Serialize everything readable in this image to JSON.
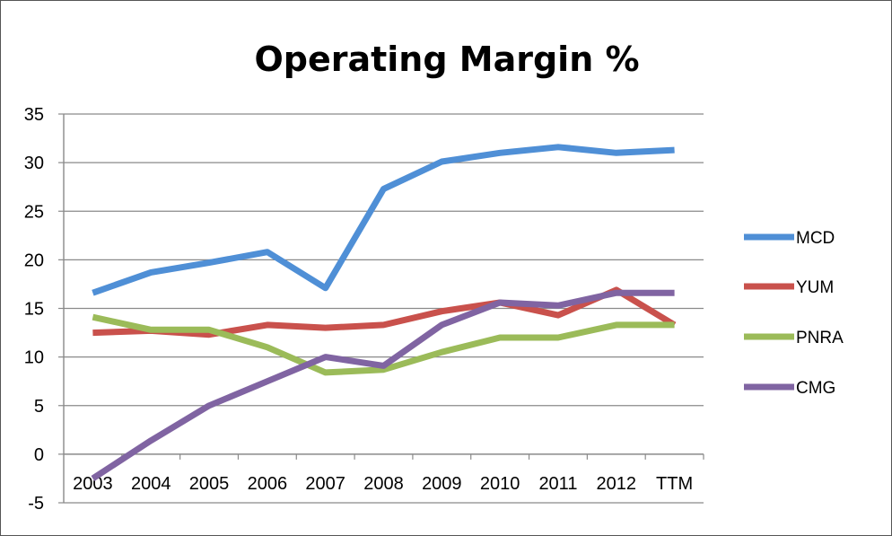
{
  "chart_data": {
    "type": "line",
    "title": "Operating Margin %",
    "xlabel": "",
    "ylabel": "",
    "categories": [
      "2003",
      "2004",
      "2005",
      "2006",
      "2007",
      "2008",
      "2009",
      "2010",
      "2011",
      "2012",
      "TTM"
    ],
    "ylim": [
      -5,
      35
    ],
    "yticks": [
      "-5",
      "0",
      "5",
      "10",
      "15",
      "20",
      "25",
      "30",
      "35"
    ],
    "grid": true,
    "legend_position": "right",
    "series": [
      {
        "name": "MCD",
        "color": "#4f8fd6",
        "values": [
          16.6,
          18.7,
          19.7,
          20.8,
          17.1,
          27.3,
          30.1,
          31.0,
          31.6,
          31.0,
          31.3
        ]
      },
      {
        "name": "YUM",
        "color": "#c9514c",
        "values": [
          12.5,
          12.7,
          12.3,
          13.3,
          13.0,
          13.3,
          14.7,
          15.6,
          14.3,
          16.9,
          13.3
        ]
      },
      {
        "name": "PNRA",
        "color": "#9bbb59",
        "values": [
          14.1,
          12.8,
          12.8,
          11.0,
          8.4,
          8.7,
          10.5,
          12.0,
          12.0,
          13.3,
          13.3
        ]
      },
      {
        "name": "CMG",
        "color": "#8064a2",
        "values": [
          -2.5,
          1.4,
          5.0,
          7.5,
          10.0,
          9.1,
          13.3,
          15.6,
          15.3,
          16.6,
          16.6
        ]
      }
    ]
  }
}
